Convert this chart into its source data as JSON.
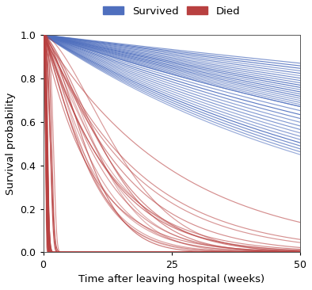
{
  "xlabel": "Time after leaving hospital (weeks)",
  "ylabel": "Survival probability",
  "xlim": [
    0,
    50
  ],
  "ylim": [
    0.0,
    1.0
  ],
  "xticks": [
    0,
    25,
    50
  ],
  "yticks": [
    0.0,
    0.2,
    0.4,
    0.6,
    0.8,
    1.0
  ],
  "survived_color": "#4F6FBE",
  "died_color": "#B84040",
  "legend_survived": "Survived",
  "legend_died": "Died",
  "n_survived": 35,
  "n_died_fast": 25,
  "n_died_slow": 20,
  "t_max": 50,
  "background_color": "#ffffff"
}
